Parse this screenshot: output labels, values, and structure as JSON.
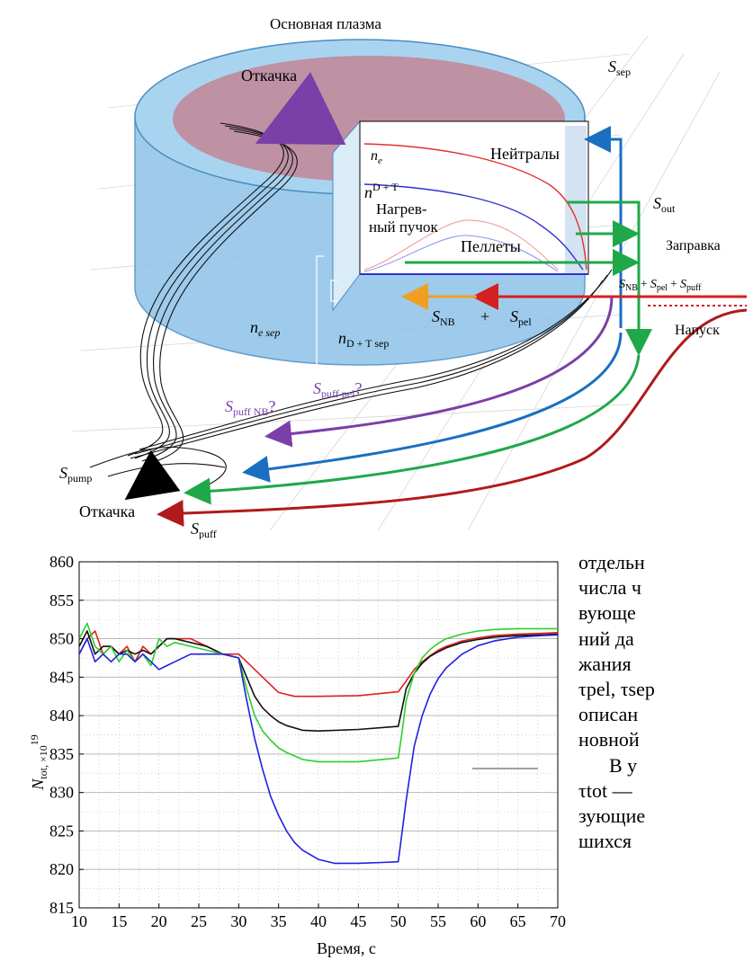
{
  "diagram": {
    "title": "Основная плазма",
    "pump_top": "Откачка",
    "pump_bottom": "Откачка",
    "neutrals": "Нейтралы",
    "ne": "n",
    "ne_sub": "e",
    "ndt": "n",
    "ndt_sup": "D + T",
    "beam_line1": "Нагрев-",
    "beam_line2": "ный пучок",
    "pellets": "Пеллеты",
    "refuel": "Заправка",
    "gas_inlet": "Напуск",
    "s_sep": "S",
    "s_sep_sub": "sep",
    "s_out": "S",
    "s_out_sub": "out",
    "s_sum_main": "S",
    "s_sum_nb": "NB",
    "s_sum_pel": "pel",
    "s_sum_puff": "puff",
    "s_nb": "S",
    "s_nb_sub": "NB",
    "plus": "+",
    "s_pel": "S",
    "s_pel_sub": "pel",
    "ne_sep": "n",
    "ne_sep_sub": "e sep",
    "ndt_sep": "n",
    "ndt_sep_sub": "D + T sep",
    "s_puff_nb": "S",
    "s_puff_nb_sub": "puff NB",
    "s_puff_pel": "S",
    "s_puff_pel_sub": "puff pel",
    "qmark": "?",
    "s_pump": "S",
    "s_pump_sub": "pump",
    "s_puff": "S",
    "s_puff_sub": "puff",
    "colors": {
      "cylinder": "#8ec3e8",
      "top": "#c08a9a",
      "red": "#d42020",
      "green": "#1fa84a",
      "blue": "#1a6fc0",
      "purple": "#7b3fa8",
      "orange": "#f0a020",
      "dark_red": "#b01a1a"
    }
  },
  "side_text": [
    "отдельн",
    "числа ч",
    "вующе",
    "ний да",
    "жания",
    "τpel, τsep",
    "описан",
    "новной",
    "В у",
    "τtot —",
    "зующие",
    "шихся"
  ],
  "chart_data": {
    "type": "line",
    "xlabel": "Время, с",
    "ylabel": "N",
    "ylabel_sub": "tot, ×10",
    "ylabel_sup": "19",
    "xlim": [
      10,
      70
    ],
    "ylim": [
      815,
      860
    ],
    "xticks": [
      10,
      15,
      20,
      25,
      30,
      35,
      40,
      45,
      50,
      55,
      60,
      65,
      70
    ],
    "yticks": [
      815,
      820,
      825,
      830,
      835,
      840,
      845,
      850,
      855,
      860
    ],
    "grid": true,
    "series": [
      {
        "color": "#e02020",
        "x": [
          10,
          11,
          12,
          13,
          14,
          15,
          16,
          17,
          18,
          19,
          20,
          21,
          22,
          24,
          26,
          28,
          30,
          31,
          32,
          33,
          34,
          35,
          37,
          40,
          45,
          50,
          51,
          52,
          53,
          54,
          55,
          56,
          58,
          60,
          62,
          65,
          68,
          70
        ],
        "y": [
          848,
          850,
          851,
          848,
          849,
          848,
          849,
          847,
          849,
          848,
          849,
          850,
          850,
          850,
          849,
          848,
          848,
          847,
          846,
          845,
          844,
          843,
          842.5,
          842.5,
          842.6,
          843.1,
          844.5,
          846,
          847,
          847.8,
          848.5,
          849,
          849.7,
          850.1,
          850.4,
          850.6,
          850.7,
          850.8
        ]
      },
      {
        "color": "#111111",
        "x": [
          10,
          11,
          12,
          13,
          14,
          15,
          16,
          17,
          18,
          19,
          20,
          21,
          22,
          24,
          26,
          28,
          30,
          31,
          32,
          33,
          34,
          35,
          36,
          38,
          40,
          45,
          50,
          50.5,
          51,
          52,
          53,
          54,
          55,
          56,
          58,
          60,
          62,
          65,
          68,
          70
        ],
        "y": [
          849,
          851,
          848,
          849,
          849,
          848,
          848.5,
          848,
          848.5,
          848,
          849,
          850,
          850,
          849.5,
          849,
          848,
          847.5,
          845,
          842.5,
          841,
          840,
          839.2,
          838.7,
          838.1,
          838.0,
          838.2,
          838.6,
          841,
          843.5,
          845.5,
          846.8,
          847.7,
          848.3,
          848.8,
          849.5,
          849.9,
          850.2,
          850.4,
          850.5,
          850.6
        ]
      },
      {
        "color": "#2cd02c",
        "x": [
          10,
          11,
          12,
          13,
          14,
          15,
          16,
          17,
          18,
          19,
          20,
          21,
          22,
          24,
          26,
          28,
          30,
          31,
          32,
          33,
          34,
          35,
          36,
          38,
          40,
          45,
          50,
          50.5,
          51,
          52,
          53,
          54,
          55,
          56,
          58,
          60,
          62,
          65,
          68,
          70
        ],
        "y": [
          850,
          852,
          849,
          848,
          849,
          847,
          848.5,
          847,
          848,
          846.5,
          850,
          849,
          849.5,
          849,
          848.5,
          848,
          847.5,
          843.5,
          840,
          838,
          836.8,
          835.8,
          835.2,
          834.3,
          834.0,
          834.0,
          834.5,
          838,
          842,
          845.5,
          847.5,
          848.6,
          849.4,
          850,
          850.6,
          851,
          851.2,
          851.3,
          851.3,
          851.3
        ]
      },
      {
        "color": "#2020e0",
        "x": [
          10,
          11,
          12,
          13,
          14,
          15,
          16,
          17,
          18,
          19,
          20,
          21,
          22,
          24,
          26,
          28,
          30,
          31,
          32,
          33,
          34,
          35,
          36,
          37,
          38,
          40,
          42,
          45,
          48,
          50,
          51,
          52,
          53,
          54,
          55,
          56,
          58,
          60,
          62,
          65,
          68,
          70
        ],
        "y": [
          848,
          850,
          847,
          848,
          847,
          848,
          848,
          847,
          848,
          847,
          846,
          846.5,
          847,
          848,
          848,
          848,
          847.5,
          842,
          837,
          833,
          829.5,
          827,
          825,
          823.5,
          822.5,
          821.3,
          820.8,
          820.8,
          820.9,
          821.0,
          829,
          836,
          840,
          842.8,
          844.8,
          846.2,
          848,
          849.1,
          849.7,
          850.2,
          850.4,
          850.5
        ]
      }
    ]
  }
}
